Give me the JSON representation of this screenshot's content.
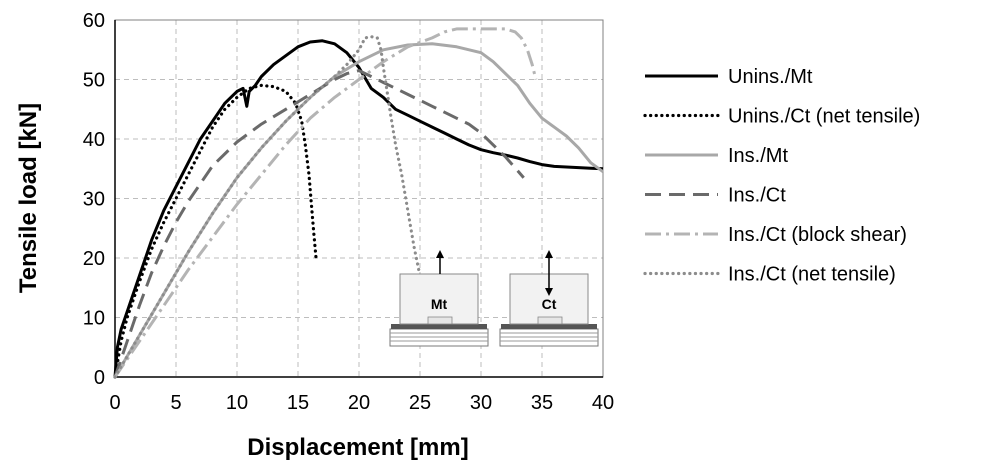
{
  "chart_data": {
    "type": "line",
    "title": "",
    "xlabel": "Displacement [mm]",
    "ylabel": "Tensile load [kN]",
    "xlim": [
      0,
      40
    ],
    "ylim": [
      0,
      60
    ],
    "xticks": [
      0,
      5,
      10,
      15,
      20,
      25,
      30,
      35,
      40
    ],
    "yticks": [
      0,
      10,
      20,
      30,
      40,
      50,
      60
    ],
    "grid": true,
    "legend_position": "right",
    "series": [
      {
        "name": "Unins./Mt",
        "color": "#000000",
        "style": "solid",
        "x": [
          0,
          0.2,
          0.5,
          1,
          2,
          3,
          4,
          5,
          6,
          7,
          8,
          9,
          10,
          10.5,
          10.8,
          11,
          11.5,
          12,
          13,
          14,
          15,
          16,
          17,
          18,
          19,
          20,
          21,
          22,
          23,
          24,
          25,
          26,
          27,
          28,
          29,
          30,
          31,
          32,
          33,
          34,
          35,
          36,
          37,
          38,
          39,
          40
        ],
        "y": [
          0,
          5,
          8,
          11,
          17,
          23,
          28,
          32,
          36,
          40,
          43,
          46,
          48,
          48.5,
          45.5,
          48,
          49,
          50.5,
          52.5,
          54,
          55.5,
          56.3,
          56.5,
          56,
          54.5,
          52,
          48.5,
          47,
          45,
          44,
          43,
          42,
          41,
          40,
          39,
          38.2,
          37.7,
          37.3,
          36.8,
          36.2,
          35.7,
          35.4,
          35.3,
          35.2,
          35.1,
          35
        ]
      },
      {
        "name": "Unins./Ct (net tensile)",
        "color": "#000000",
        "style": "dotted",
        "x": [
          0,
          0.5,
          1,
          2,
          3,
          4,
          5,
          6,
          7,
          8,
          9,
          10,
          11,
          12,
          13,
          14,
          14.8,
          15.3,
          15.6,
          15.9,
          16.1,
          16.3,
          16.5
        ],
        "y": [
          0,
          6,
          10,
          16,
          21.5,
          26,
          30,
          34,
          38,
          42,
          45,
          47,
          48.5,
          49,
          48.8,
          48,
          46,
          43,
          39,
          34,
          29,
          24,
          19.5
        ]
      },
      {
        "name": "Ins./Mt",
        "color": "#a8a8a8",
        "style": "solid",
        "x": [
          0,
          2,
          4,
          6,
          8,
          10,
          12,
          14,
          16,
          18,
          20,
          22,
          24,
          26,
          28,
          30,
          31,
          32,
          33,
          34,
          35,
          36,
          37,
          38,
          39,
          40
        ],
        "y": [
          0,
          7,
          14,
          21,
          27.5,
          33.5,
          38.5,
          43,
          47,
          50.5,
          53,
          55,
          55.8,
          56,
          55.5,
          54.5,
          53,
          51,
          49,
          46,
          43.5,
          42,
          40.5,
          38.5,
          36,
          34.5
        ]
      },
      {
        "name": "Ins./Ct",
        "color": "#6a6a6a",
        "style": "dashed",
        "x": [
          0,
          1,
          2,
          3,
          4,
          5,
          6,
          8,
          10,
          12,
          14,
          16,
          18,
          19,
          20,
          21,
          22,
          23,
          24,
          25,
          26,
          27,
          28,
          29,
          30,
          31,
          32,
          33.5
        ],
        "y": [
          0,
          6,
          12,
          17.5,
          22,
          26,
          29.5,
          35.5,
          39.5,
          42.5,
          45,
          47.5,
          50,
          51,
          51.5,
          50.5,
          49.5,
          48.5,
          47.5,
          46.5,
          45.5,
          44.5,
          43.5,
          42.5,
          41,
          39,
          37,
          33.5
        ]
      },
      {
        "name": "Ins./Ct (block shear)",
        "color": "#b4b4b4",
        "style": "dash-dot",
        "x": [
          0,
          2,
          4,
          6,
          8,
          10,
          12,
          14,
          16,
          18,
          20,
          22,
          24,
          26,
          27,
          28,
          29,
          30,
          31,
          32,
          32.8,
          33.3,
          33.8,
          34.2,
          34.5
        ],
        "y": [
          0,
          6,
          12,
          18,
          23.5,
          29,
          34,
          39,
          43.5,
          47,
          50,
          53,
          55.5,
          57,
          58,
          58.5,
          58.5,
          58.5,
          58.5,
          58.5,
          58,
          57,
          55,
          52.5,
          50
        ]
      },
      {
        "name": "Ins./Ct (net tensile)",
        "color": "#8c8c8c",
        "style": "dotted",
        "x": [
          0,
          2,
          4,
          6,
          8,
          10,
          12,
          14,
          16,
          18,
          19,
          20,
          20.5,
          21,
          21.5,
          21.8,
          22,
          22.3,
          22.6,
          23,
          23.5,
          24,
          24.5,
          25
        ],
        "y": [
          0,
          7,
          14,
          21,
          27.5,
          33.5,
          38.5,
          43,
          47,
          50.5,
          52.5,
          55,
          57,
          57.2,
          57,
          55,
          52,
          48,
          44,
          39,
          34,
          28,
          22,
          17
        ]
      }
    ],
    "inset": [
      {
        "label": "Mt",
        "arrow": "up"
      },
      {
        "label": "Ct",
        "arrow": "both"
      }
    ]
  }
}
